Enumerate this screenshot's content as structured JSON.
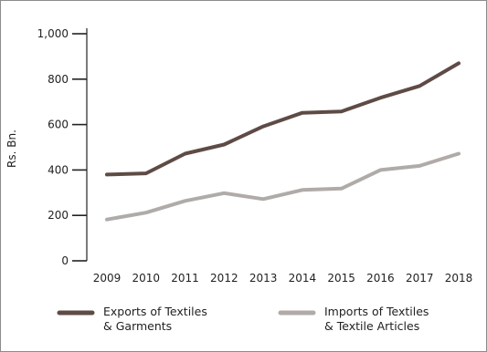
{
  "chart_data": {
    "type": "line",
    "ylabel": "Rs. Bn.",
    "xlabel": "",
    "title": "",
    "ylim": [
      0,
      1000
    ],
    "yticks": [
      0,
      200,
      400,
      600,
      800,
      1000
    ],
    "ytick_labels": [
      "0",
      "200",
      "400",
      "600",
      "800",
      "1,000"
    ],
    "x": [
      "2009",
      "2010",
      "2011",
      "2012",
      "2013",
      "2014",
      "2015",
      "2016",
      "2017",
      "2018"
    ],
    "grid": false,
    "legend_position": "bottom",
    "series": [
      {
        "name": "Exports of Textiles & Garments",
        "name_lines": [
          "Exports of Textiles",
          "& Garments"
        ],
        "color": "#5e4b45",
        "values": [
          380,
          385,
          472,
          512,
          592,
          652,
          658,
          718,
          770,
          870
        ]
      },
      {
        "name": "Imports of Textiles & Textile Articles",
        "name_lines": [
          "Imports of Textiles",
          "& Textile Articles"
        ],
        "color": "#b0aba8",
        "values": [
          182,
          212,
          264,
          298,
          272,
          312,
          318,
          400,
          418,
          472
        ]
      }
    ]
  }
}
